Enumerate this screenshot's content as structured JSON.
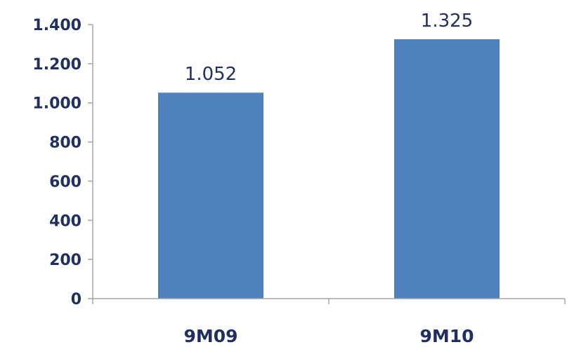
{
  "chart_data": {
    "type": "bar",
    "categories": [
      "9M09",
      "9M10"
    ],
    "values": [
      1052,
      1325
    ],
    "value_labels": [
      "1.052",
      "1.325"
    ],
    "y_ticks": [
      0,
      200,
      400,
      600,
      800,
      1000,
      1200,
      1400
    ],
    "y_tick_labels": [
      "0",
      "200",
      "400",
      "600",
      "800",
      "1.000",
      "1.200",
      "1.400"
    ],
    "ylim": [
      0,
      1400
    ],
    "grid": false,
    "legend": "none",
    "colors": {
      "bar": "#4f81bd",
      "text": "#1f2f5e",
      "axis": "#a6a6a6"
    }
  }
}
